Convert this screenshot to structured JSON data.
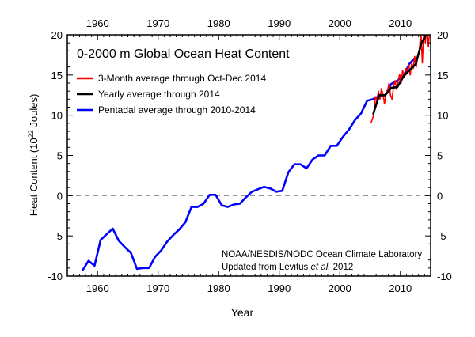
{
  "chart_data": {
    "type": "line",
    "title": "0-2000 m Global Ocean Heat Content",
    "xlabel": "Year",
    "ylabel": "Heat Content (10",
    "ylabel_sup": "22",
    "ylabel_end": " Joules)",
    "xlim": [
      1955,
      2015
    ],
    "ylim": [
      -10,
      20
    ],
    "xticks": [
      1960,
      1970,
      1980,
      1990,
      2000,
      2010
    ],
    "yticks": [
      -10,
      -5,
      0,
      5,
      10,
      15,
      20
    ],
    "zero_line": {
      "value": 0,
      "style": "dashed",
      "color": "#888888"
    },
    "legend_placement": "top-left",
    "series": [
      {
        "name": "3-Month average through Oct-Dec 2014",
        "color": "#ff0000",
        "x": [
          2005.125,
          2005.375,
          2005.625,
          2005.875,
          2006.125,
          2006.375,
          2006.625,
          2006.875,
          2007.125,
          2007.375,
          2007.625,
          2007.875,
          2008.125,
          2008.375,
          2008.625,
          2008.875,
          2009.125,
          2009.375,
          2009.625,
          2009.875,
          2010.125,
          2010.375,
          2010.625,
          2010.875,
          2011.125,
          2011.375,
          2011.625,
          2011.875,
          2012.125,
          2012.375,
          2012.625,
          2012.875,
          2013.125,
          2013.375,
          2013.625,
          2013.875,
          2014.125,
          2014.375,
          2014.625,
          2014.875
        ],
        "y": [
          9.0,
          9.5,
          10.2,
          12.3,
          11.8,
          13.0,
          12.0,
          13.3,
          12.6,
          11.4,
          12.8,
          13.0,
          14.0,
          12.5,
          12.0,
          13.5,
          14.3,
          13.2,
          14.2,
          15.1,
          14.0,
          15.6,
          14.7,
          15.8,
          15.5,
          16.3,
          15.0,
          16.5,
          15.8,
          17.3,
          16.0,
          17.5,
          18.0,
          20.5,
          16.5,
          20.6,
          19.0,
          21.0,
          18.5,
          20.8
        ]
      },
      {
        "name": "Yearly average through 2014",
        "color": "#000000",
        "x": [
          2005.5,
          2006.5,
          2007.5,
          2008.5,
          2009.5,
          2010.5,
          2011.5,
          2012.5,
          2013.5,
          2014.5
        ],
        "y": [
          10.1,
          12.5,
          12.5,
          13.4,
          13.5,
          14.8,
          15.6,
          16.3,
          19.0,
          20.3
        ]
      },
      {
        "name": "Pentadal average through 2010-2014",
        "color": "#0000ff",
        "x": [
          1957.5,
          1958.5,
          1959.5,
          1960.5,
          1961.5,
          1962.5,
          1963.5,
          1964.5,
          1965.5,
          1966.5,
          1967.5,
          1968.5,
          1969.5,
          1970.5,
          1971.5,
          1972.5,
          1973.5,
          1974.5,
          1975.5,
          1976.5,
          1977.5,
          1978.5,
          1979.5,
          1980.5,
          1981.5,
          1982.5,
          1983.5,
          1984.5,
          1985.5,
          1986.5,
          1987.5,
          1988.5,
          1989.5,
          1990.5,
          1991.5,
          1992.5,
          1993.5,
          1994.5,
          1995.5,
          1996.5,
          1997.5,
          1998.5,
          1999.5,
          2000.5,
          2001.5,
          2002.5,
          2003.5,
          2004.5,
          2005.5,
          2006.5,
          2007.5,
          2008.5,
          2009.5,
          2010.5,
          2011.5,
          2012.5
        ],
        "y": [
          -9.3,
          -8.1,
          -8.7,
          -5.5,
          -4.8,
          -4.1,
          -5.6,
          -6.4,
          -7.1,
          -9.1,
          -9.0,
          -9.0,
          -7.6,
          -6.8,
          -5.7,
          -4.9,
          -4.2,
          -3.3,
          -1.4,
          -1.4,
          -1.0,
          0.1,
          0.1,
          -1.2,
          -1.4,
          -1.1,
          -1.0,
          -0.2,
          0.5,
          0.8,
          1.1,
          0.9,
          0.5,
          0.6,
          2.9,
          3.9,
          3.9,
          3.4,
          4.5,
          5.0,
          5.0,
          6.2,
          6.2,
          7.3,
          8.2,
          9.4,
          10.2,
          11.8,
          12.0,
          12.4,
          12.5,
          13.9,
          14.3,
          14.9,
          16.4,
          17.2
        ]
      }
    ],
    "annotation": {
      "line1": "NOAA/NESDIS/NODC Ocean Climate Laboratory",
      "line2_pre": "Updated from Levitus ",
      "line2_italic": "et al.",
      "line2_post": " 2012"
    }
  }
}
